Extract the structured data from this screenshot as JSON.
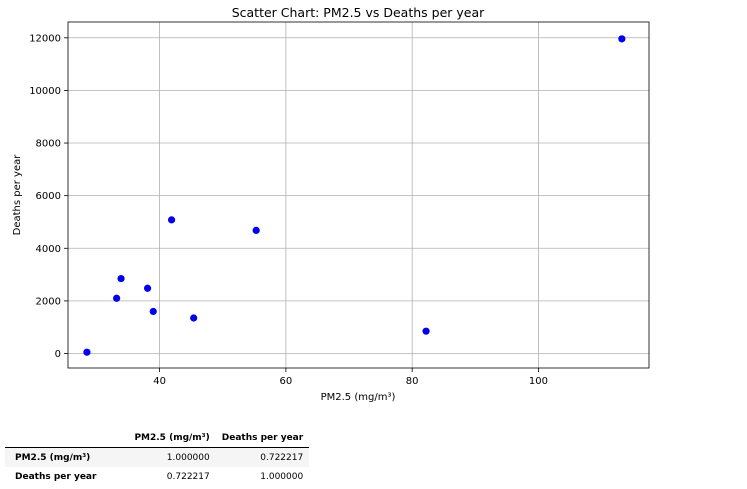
{
  "chart_data": {
    "type": "scatter",
    "title": "Scatter Chart: PM2.5 vs Deaths per year",
    "xlabel": "PM2.5 (mg/m³)",
    "ylabel": "Deaths per year",
    "xlim": [
      25.5,
      117.5
    ],
    "ylim": [
      -550,
      12600
    ],
    "xticks": [
      40,
      60,
      80,
      100
    ],
    "yticks": [
      0,
      2000,
      4000,
      6000,
      8000,
      10000,
      12000
    ],
    "grid": true,
    "marker_color": "#0000ee",
    "points": [
      {
        "x": 28.5,
        "y": 50
      },
      {
        "x": 33.2,
        "y": 2100
      },
      {
        "x": 33.9,
        "y": 2850
      },
      {
        "x": 38.1,
        "y": 2480
      },
      {
        "x": 39.0,
        "y": 1600
      },
      {
        "x": 41.9,
        "y": 5080
      },
      {
        "x": 45.4,
        "y": 1350
      },
      {
        "x": 55.3,
        "y": 4680
      },
      {
        "x": 82.2,
        "y": 850
      },
      {
        "x": 113.2,
        "y": 11960
      }
    ]
  },
  "table": {
    "headers": [
      "",
      "PM2.5 (mg/m³)",
      "Deaths per year"
    ],
    "rows": [
      {
        "label": "PM2.5 (mg/m³)",
        "values": [
          "1.000000",
          "0.722217"
        ]
      },
      {
        "label": "Deaths per year",
        "values": [
          "0.722217",
          "1.000000"
        ]
      }
    ]
  }
}
